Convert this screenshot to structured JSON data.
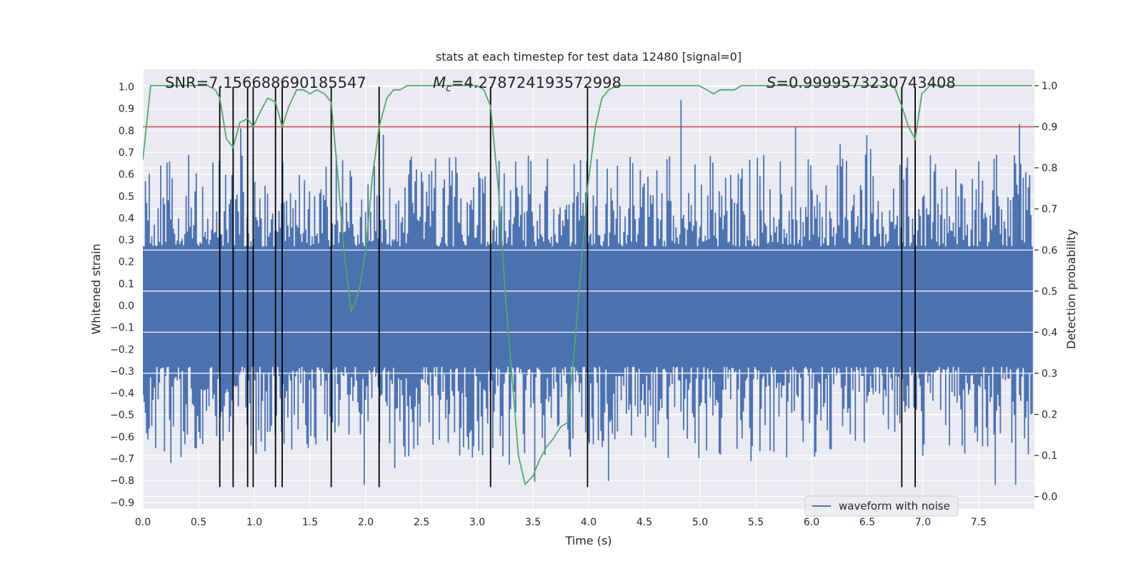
{
  "chart_data": {
    "type": "line",
    "title": "stats at each timestep for test data 12480 [signal=0]",
    "xlabel": "Time (s)",
    "ylabel_left": "Whitened strain",
    "ylabel_right": "Detection probability",
    "xlim": [
      0.0,
      8.0
    ],
    "ylim_left": [
      -0.93,
      1.08
    ],
    "ylim_right": [
      -0.03,
      1.04
    ],
    "x_ticks": [
      "0.0",
      "0.5",
      "1.0",
      "1.5",
      "2.0",
      "2.5",
      "3.0",
      "3.5",
      "4.0",
      "4.5",
      "5.0",
      "5.5",
      "6.0",
      "6.5",
      "7.0",
      "7.5"
    ],
    "x_tick_values": [
      0.0,
      0.5,
      1.0,
      1.5,
      2.0,
      2.5,
      3.0,
      3.5,
      4.0,
      4.5,
      5.0,
      5.5,
      6.0,
      6.5,
      7.0,
      7.5
    ],
    "y_left_ticks": [
      "1.0",
      "0.9",
      "0.8",
      "0.7",
      "0.6",
      "0.5",
      "0.4",
      "0.3",
      "0.2",
      "0.1",
      "0.0",
      "−0.1",
      "−0.2",
      "−0.3",
      "−0.4",
      "−0.5",
      "−0.6",
      "−0.7",
      "−0.8",
      "−0.9"
    ],
    "y_left_tick_values": [
      1.0,
      0.9,
      0.8,
      0.7,
      0.6,
      0.5,
      0.4,
      0.3,
      0.2,
      0.1,
      0.0,
      -0.1,
      -0.2,
      -0.3,
      -0.4,
      -0.5,
      -0.6,
      -0.7,
      -0.8,
      -0.9
    ],
    "y_right_ticks": [
      "1.0",
      "0.9",
      "0.8",
      "0.7",
      "0.6",
      "0.5",
      "0.4",
      "0.3",
      "0.2",
      "0.1",
      "0.0"
    ],
    "y_right_tick_values": [
      1.0,
      0.9,
      0.8,
      0.7,
      0.6,
      0.5,
      0.4,
      0.3,
      0.2,
      0.1,
      0.0
    ],
    "annotations": {
      "snr": "SNR=7.156688690185547",
      "mc": "=4.278724193572998",
      "mc_symbol": "M",
      "mc_subscript": "c",
      "s_symbol": "S",
      "s": "=0.9999573230743408"
    },
    "legend": {
      "label": "waveform with noise",
      "position": "lower-right"
    },
    "threshold": {
      "value": 0.9,
      "axis": "right"
    },
    "waveform": {
      "label": "waveform with noise",
      "x_range": [
        0.0,
        7.98
      ],
      "band_min": -0.28,
      "band_max": 0.27,
      "peak_max": 0.95,
      "peak_min": -0.82,
      "notable_peaks": [
        {
          "x": 4.83,
          "y": 0.94
        },
        {
          "x": 0.88,
          "y": 0.81
        },
        {
          "x": 5.86,
          "y": 0.82
        },
        {
          "x": 7.87,
          "y": 0.83
        },
        {
          "x": 7.83,
          "y": -0.82
        },
        {
          "x": 7.65,
          "y": -0.82
        },
        {
          "x": 1.99,
          "y": -0.83
        },
        {
          "x": 0.25,
          "y": -0.72
        }
      ]
    },
    "vlines": {
      "x": [
        0.69,
        0.81,
        0.94,
        0.99,
        1.19,
        1.25,
        1.69,
        2.12,
        3.12,
        3.99,
        6.81,
        6.93
      ],
      "y_from": -0.83,
      "y_to": 1.0
    },
    "probability": {
      "x": [
        0.0,
        0.07,
        0.12,
        0.18,
        0.25,
        0.32,
        0.38,
        0.45,
        0.52,
        0.58,
        0.65,
        0.69,
        0.75,
        0.81,
        0.87,
        0.94,
        0.99,
        1.06,
        1.12,
        1.19,
        1.25,
        1.31,
        1.38,
        1.44,
        1.5,
        1.56,
        1.63,
        1.69,
        1.75,
        1.81,
        1.87,
        1.94,
        2.0,
        2.06,
        2.12,
        2.19,
        2.25,
        2.31,
        2.37,
        2.44,
        2.5,
        2.56,
        2.62,
        2.69,
        2.75,
        2.81,
        2.87,
        2.94,
        3.0,
        3.06,
        3.12,
        3.19,
        3.25,
        3.31,
        3.37,
        3.43,
        3.5,
        3.56,
        3.62,
        3.68,
        3.75,
        3.81,
        3.87,
        3.93,
        3.99,
        4.06,
        4.12,
        4.18,
        4.25,
        4.31,
        4.37,
        4.43,
        4.5,
        4.56,
        4.62,
        4.68,
        4.74,
        4.81,
        4.87,
        4.93,
        4.99,
        5.06,
        5.12,
        5.18,
        5.24,
        5.31,
        5.37,
        5.43,
        5.49,
        5.56,
        5.62,
        5.68,
        5.74,
        5.81,
        5.87,
        5.93,
        5.99,
        6.06,
        6.12,
        6.18,
        6.24,
        6.31,
        6.37,
        6.43,
        6.49,
        6.56,
        6.62,
        6.68,
        6.74,
        6.81,
        6.87,
        6.93,
        6.99,
        7.06,
        7.12,
        7.18,
        7.24,
        7.31,
        7.37,
        7.43,
        7.49,
        7.56,
        7.62,
        7.68,
        7.74,
        7.81,
        7.87,
        7.93,
        7.98
      ],
      "y": [
        0.82,
        1.0,
        1.0,
        1.0,
        1.0,
        1.0,
        1.0,
        1.0,
        1.0,
        1.0,
        0.99,
        0.97,
        0.87,
        0.85,
        0.91,
        0.92,
        0.9,
        0.94,
        0.97,
        0.96,
        0.9,
        0.95,
        0.99,
        0.99,
        0.98,
        0.99,
        0.98,
        0.96,
        0.78,
        0.58,
        0.45,
        0.5,
        0.6,
        0.78,
        0.9,
        0.97,
        0.99,
        0.99,
        1.0,
        1.0,
        1.0,
        1.0,
        1.0,
        1.0,
        1.0,
        1.0,
        1.0,
        1.0,
        1.0,
        0.99,
        0.95,
        0.75,
        0.5,
        0.3,
        0.1,
        0.03,
        0.05,
        0.09,
        0.12,
        0.14,
        0.17,
        0.18,
        0.35,
        0.55,
        0.75,
        0.9,
        0.97,
        0.99,
        1.0,
        1.0,
        1.0,
        1.0,
        1.0,
        1.0,
        1.0,
        1.0,
        1.0,
        1.0,
        1.0,
        1.0,
        1.0,
        0.99,
        0.98,
        0.99,
        0.99,
        0.99,
        1.0,
        1.0,
        1.0,
        1.0,
        1.0,
        1.0,
        1.0,
        1.0,
        1.0,
        1.0,
        1.0,
        1.0,
        1.0,
        1.0,
        1.0,
        1.0,
        1.0,
        1.0,
        1.0,
        1.0,
        1.0,
        1.0,
        1.0,
        0.95,
        0.9,
        0.87,
        0.98,
        1.0,
        1.0,
        1.0,
        1.0,
        1.0,
        1.0,
        1.0,
        1.0,
        1.0,
        1.0,
        1.0,
        1.0,
        1.0,
        1.0,
        1.0,
        1.0
      ]
    },
    "colors": {
      "plot_background": "#eaeaf2",
      "grid": "#ffffff",
      "waveform": "#4c72b0",
      "probability": "#55a868",
      "threshold": "#c44e52",
      "vlines": "#000000",
      "text": "#262626"
    }
  }
}
